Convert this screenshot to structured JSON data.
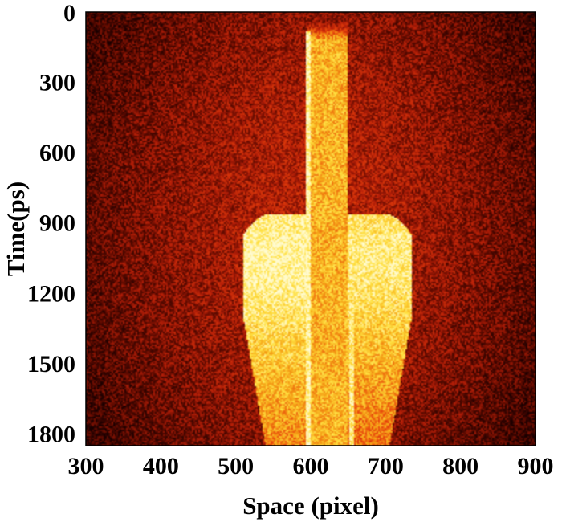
{
  "chart_data": {
    "type": "heatmap",
    "title": "",
    "xlabel": "Space (pixel)",
    "ylabel": "Time(ps)",
    "xlim": [
      300,
      900
    ],
    "ylim": [
      1850,
      0
    ],
    "y_axis_inverted": true,
    "x_ticks": [
      300,
      400,
      500,
      600,
      700,
      800,
      900
    ],
    "y_ticks": [
      0,
      300,
      600,
      900,
      1200,
      1500,
      1800
    ],
    "grid": false,
    "legend": "none",
    "colormap": [
      "#1a0000",
      "#5c0a00",
      "#b41e08",
      "#e8420c",
      "#f5a015",
      "#ffe040",
      "#fffbd0"
    ],
    "background_intensity": 0.3,
    "features": [
      {
        "name": "central-column",
        "type": "band",
        "x_range": [
          595,
          650
        ],
        "t_range": [
          50,
          1850
        ],
        "intensity": 0.72
      },
      {
        "name": "bright-line-left",
        "type": "line",
        "x": 597,
        "t_range": [
          80,
          1850
        ],
        "intensity": 0.95
      },
      {
        "name": "bright-line-right",
        "type": "line",
        "x": 655,
        "t_range": [
          930,
          1850
        ],
        "intensity": 0.9
      },
      {
        "name": "bulb-left",
        "type": "bulb",
        "x_range": [
          510,
          595
        ],
        "t_start": 860,
        "t_end": 1850,
        "intensity": 0.85
      },
      {
        "name": "bulb-right",
        "type": "bulb",
        "x_range": [
          650,
          735
        ],
        "t_start": 860,
        "t_end": 1850,
        "intensity": 0.8
      }
    ]
  }
}
